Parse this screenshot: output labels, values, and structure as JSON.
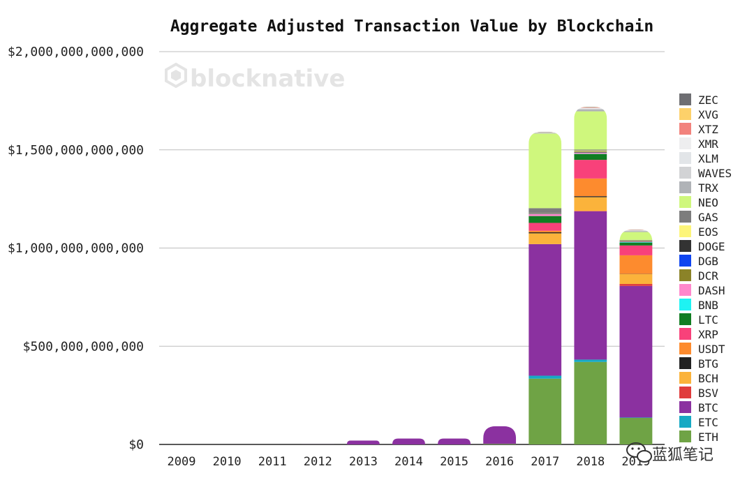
{
  "watermark": "blocknative",
  "credit": "蓝狐笔记",
  "chart_data": {
    "type": "bar",
    "stacked": true,
    "title": "Aggregate Adjusted Transaction Value by Blockchain",
    "xlabel": "",
    "ylabel": "",
    "ylim": [
      0,
      2000000000000
    ],
    "yticks": [
      0,
      500000000000,
      1000000000000,
      1500000000000,
      2000000000000
    ],
    "ytick_labels": [
      "$0",
      "$500,000,000,000",
      "$1,000,000,000,000",
      "$1,500,000,000,000",
      "$2,000,000,000,000"
    ],
    "grid": true,
    "legend_position": "right",
    "categories": [
      "2009",
      "2010",
      "2011",
      "2012",
      "2013",
      "2014",
      "2015",
      "2016",
      "2017",
      "2018",
      "2019"
    ],
    "series": [
      {
        "name": "ETH",
        "color": "#6fa345",
        "values": [
          0,
          0,
          0,
          0,
          0,
          0,
          0,
          3000000000,
          335000000000,
          420000000000,
          135000000000
        ]
      },
      {
        "name": "ETC",
        "color": "#17a9c4",
        "values": [
          0,
          0,
          0,
          0,
          0,
          0,
          0,
          0,
          15000000000,
          12000000000,
          2000000000
        ]
      },
      {
        "name": "BTC",
        "color": "#8b31a0",
        "values": [
          1000000,
          2000000,
          200000000,
          500000000,
          20000000000,
          30000000000,
          30000000000,
          90000000000,
          670000000000,
          755000000000,
          670000000000
        ]
      },
      {
        "name": "BSV",
        "color": "#e03c3c",
        "values": [
          0,
          0,
          0,
          0,
          0,
          0,
          0,
          0,
          0,
          2000000000,
          10000000000
        ]
      },
      {
        "name": "BCH",
        "color": "#fbb33b",
        "values": [
          0,
          0,
          0,
          0,
          0,
          0,
          0,
          0,
          55000000000,
          70000000000,
          50000000000
        ]
      },
      {
        "name": "BTG",
        "color": "#222222",
        "values": [
          0,
          0,
          0,
          0,
          0,
          0,
          0,
          0,
          5000000000,
          5000000000,
          1000000000
        ]
      },
      {
        "name": "USDT",
        "color": "#fd8b2e",
        "values": [
          0,
          0,
          0,
          0,
          0,
          0,
          0,
          0,
          8000000000,
          90000000000,
          95000000000
        ]
      },
      {
        "name": "XRP",
        "color": "#f8417a",
        "values": [
          0,
          0,
          0,
          0,
          0,
          0,
          0,
          0,
          40000000000,
          95000000000,
          50000000000
        ]
      },
      {
        "name": "LTC",
        "color": "#117d22",
        "values": [
          0,
          0,
          0,
          0,
          0,
          0,
          0,
          0,
          35000000000,
          30000000000,
          15000000000
        ]
      },
      {
        "name": "BNB",
        "color": "#1ef3f3",
        "values": [
          0,
          0,
          0,
          0,
          0,
          0,
          0,
          0,
          0,
          1000000000,
          2000000000
        ]
      },
      {
        "name": "DASH",
        "color": "#ff88cc",
        "values": [
          0,
          0,
          0,
          0,
          0,
          0,
          0,
          0,
          10000000000,
          5000000000,
          2000000000
        ]
      },
      {
        "name": "DCR",
        "color": "#8b8328",
        "values": [
          0,
          0,
          0,
          0,
          0,
          0,
          0,
          0,
          1000000000,
          2000000000,
          1000000000
        ]
      },
      {
        "name": "DGB",
        "color": "#0f45f0",
        "values": [
          0,
          0,
          0,
          0,
          0,
          0,
          0,
          0,
          1000000000,
          1000000000,
          500000000
        ]
      },
      {
        "name": "DOGE",
        "color": "#333333",
        "values": [
          0,
          0,
          0,
          0,
          0,
          0,
          0,
          0,
          2000000000,
          3000000000,
          2000000000
        ]
      },
      {
        "name": "EOS",
        "color": "#fdf57a",
        "values": [
          0,
          0,
          0,
          0,
          0,
          0,
          0,
          0,
          1000000000,
          5000000000,
          3000000000
        ]
      },
      {
        "name": "GAS",
        "color": "#7d7d7d",
        "values": [
          0,
          0,
          0,
          0,
          0,
          0,
          0,
          0,
          25000000000,
          5000000000,
          3000000000
        ]
      },
      {
        "name": "NEO",
        "color": "#cff77d",
        "values": [
          0,
          0,
          0,
          0,
          0,
          0,
          0,
          0,
          380000000000,
          195000000000,
          40000000000
        ]
      },
      {
        "name": "TRX",
        "color": "#b0b3b7",
        "values": [
          0,
          0,
          0,
          0,
          0,
          0,
          0,
          0,
          3000000000,
          10000000000,
          5000000000
        ]
      },
      {
        "name": "WAVES",
        "color": "#d2d3d5",
        "values": [
          0,
          0,
          0,
          0,
          0,
          0,
          0,
          0,
          1000000000,
          3000000000,
          2000000000
        ]
      },
      {
        "name": "XLM",
        "color": "#e2e5e8",
        "values": [
          0,
          0,
          0,
          0,
          0,
          0,
          0,
          0,
          1000000000,
          3000000000,
          2000000000
        ]
      },
      {
        "name": "XMR",
        "color": "#eeeeef",
        "values": [
          0,
          0,
          0,
          0,
          0,
          0,
          0,
          0,
          1000000000,
          2000000000,
          1000000000
        ]
      },
      {
        "name": "XTZ",
        "color": "#f2827c",
        "values": [
          0,
          0,
          0,
          0,
          0,
          0,
          0,
          0,
          0,
          2000000000,
          1000000000
        ]
      },
      {
        "name": "XVG",
        "color": "#fdd16a",
        "values": [
          0,
          0,
          0,
          0,
          0,
          0,
          0,
          0,
          1000000000,
          1000000000,
          500000000
        ]
      },
      {
        "name": "ZEC",
        "color": "#6e6e72",
        "values": [
          0,
          0,
          0,
          0,
          0,
          0,
          0,
          0,
          2000000000,
          2000000000,
          1000000000
        ]
      }
    ]
  }
}
